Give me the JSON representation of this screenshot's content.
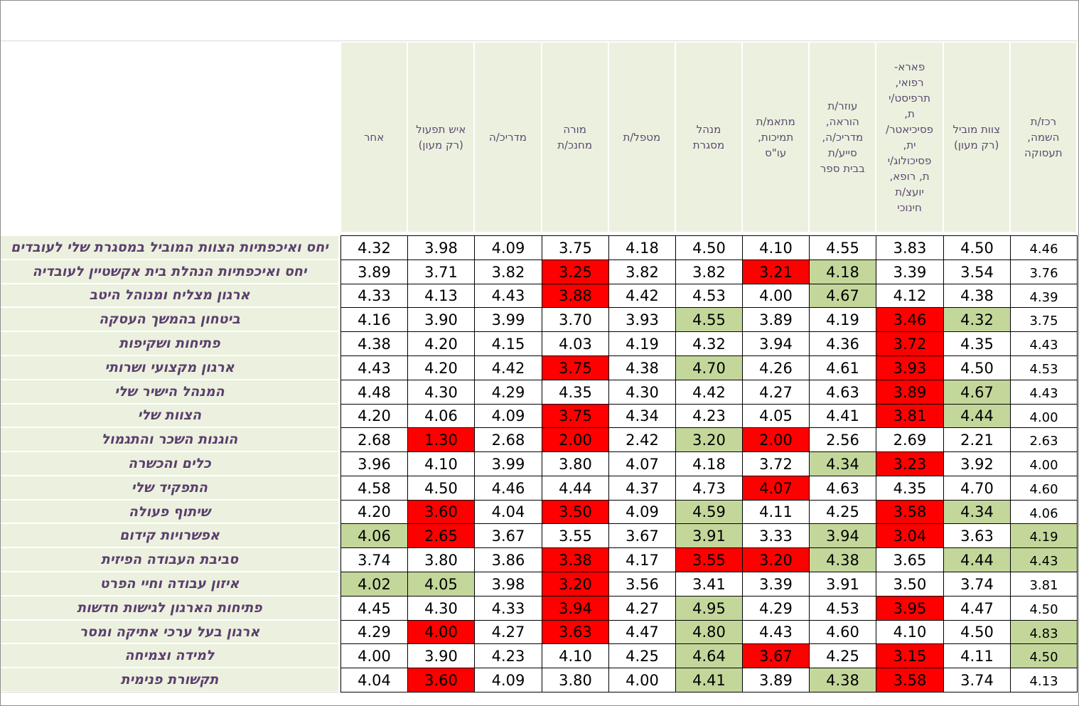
{
  "colors": {
    "red": "#ff0000",
    "green": "#c4d79b",
    "header_bg": "#ebf1de",
    "label_text": "#5b3f6e"
  },
  "chart_data": {
    "type": "table",
    "columns": [
      "רכז/ת\nהשמה,\nתעסוקה",
      "צוות מוביל\n(רק מעון)",
      "פארא-\nרפואי,\nתרפיסט/י\nת,\nפסיכיאטר/\nית,\nפסיכולוג/י\nת, רופא,\nיועצ/ת\nחינוכי",
      "עוזר/ת\nהוראה,\nמדריכ/ה,\nסייע/ת\nבבית ספר",
      "מתאמ/ת\nתמיכות,\nעו\"ס",
      "מנהל\nמסגרת",
      "מטפל/ת",
      "מורה\nמחנכ/ת",
      "מדריכ/ה",
      "איש תפעול\n(רק מעון)",
      "אחר"
    ],
    "rows": [
      {
        "label": "יחס ואיכפתיות הצוות המוביל במסגרת שלי לעובדים",
        "values": [
          "4.46",
          "4.50",
          "3.83",
          "4.55",
          "4.10",
          "4.50",
          "4.18",
          "3.75",
          "4.09",
          "3.98",
          "4.32"
        ],
        "status": [
          "",
          "",
          "",
          "",
          "",
          "",
          "",
          "",
          "",
          "",
          ""
        ]
      },
      {
        "label": "יחס ואיכפתיות הנהלת בית אקשטיין לעובדיה",
        "values": [
          "3.76",
          "3.54",
          "3.39",
          "4.18",
          "3.21",
          "3.82",
          "3.82",
          "3.25",
          "3.82",
          "3.71",
          "3.89"
        ],
        "status": [
          "",
          "",
          "",
          "green",
          "red",
          "",
          "",
          "red",
          "",
          "",
          ""
        ]
      },
      {
        "label": "ארגון מצליח ומנוהל היטב",
        "values": [
          "4.39",
          "4.38",
          "4.12",
          "4.67",
          "4.00",
          "4.53",
          "4.42",
          "3.88",
          "4.43",
          "4.13",
          "4.33"
        ],
        "status": [
          "",
          "",
          "",
          "green",
          "",
          "",
          "",
          "red",
          "",
          "",
          ""
        ]
      },
      {
        "label": "ביטחון בהמשך העסקה",
        "values": [
          "3.75",
          "4.32",
          "3.46",
          "4.19",
          "3.89",
          "4.55",
          "3.93",
          "3.70",
          "3.99",
          "3.90",
          "4.16"
        ],
        "status": [
          "",
          "green",
          "red",
          "",
          "",
          "green",
          "",
          "",
          "",
          "",
          ""
        ]
      },
      {
        "label": "פתיחות ושקיפות",
        "values": [
          "4.43",
          "4.35",
          "3.72",
          "4.36",
          "3.94",
          "4.32",
          "4.19",
          "4.03",
          "4.15",
          "4.20",
          "4.38"
        ],
        "status": [
          "",
          "",
          "red",
          "",
          "",
          "",
          "",
          "",
          "",
          "",
          ""
        ]
      },
      {
        "label": "ארגון מקצועי ושרותי",
        "values": [
          "4.53",
          "4.50",
          "3.93",
          "4.61",
          "4.26",
          "4.70",
          "4.38",
          "3.75",
          "4.42",
          "4.20",
          "4.43"
        ],
        "status": [
          "",
          "",
          "red",
          "",
          "",
          "green",
          "",
          "red",
          "",
          "",
          ""
        ]
      },
      {
        "label": "המנהל הישיר שלי",
        "values": [
          "4.43",
          "4.67",
          "3.89",
          "4.63",
          "4.27",
          "4.42",
          "4.30",
          "4.35",
          "4.29",
          "4.30",
          "4.48"
        ],
        "status": [
          "",
          "green",
          "red",
          "",
          "",
          "",
          "",
          "",
          "",
          "",
          ""
        ]
      },
      {
        "label": "הצוות שלי",
        "values": [
          "4.00",
          "4.44",
          "3.81",
          "4.41",
          "4.05",
          "4.23",
          "4.34",
          "3.75",
          "4.09",
          "4.06",
          "4.20"
        ],
        "status": [
          "",
          "green",
          "red",
          "",
          "",
          "",
          "",
          "red",
          "",
          "",
          ""
        ]
      },
      {
        "label": "הוגנות השכר והתגמול",
        "values": [
          "2.63",
          "2.21",
          "2.69",
          "2.56",
          "2.00",
          "3.20",
          "2.42",
          "2.00",
          "2.68",
          "1.30",
          "2.68"
        ],
        "status": [
          "",
          "",
          "",
          "",
          "red",
          "green",
          "",
          "red",
          "",
          "red",
          ""
        ]
      },
      {
        "label": "כלים והכשרה",
        "values": [
          "4.00",
          "3.92",
          "3.23",
          "4.34",
          "3.72",
          "4.18",
          "4.07",
          "3.80",
          "3.99",
          "4.10",
          "3.96"
        ],
        "status": [
          "",
          "",
          "red",
          "green",
          "",
          "",
          "",
          "",
          "",
          "",
          ""
        ]
      },
      {
        "label": "התפקיד שלי",
        "values": [
          "4.60",
          "4.70",
          "4.35",
          "4.63",
          "4.07",
          "4.73",
          "4.37",
          "4.44",
          "4.46",
          "4.50",
          "4.58"
        ],
        "status": [
          "",
          "",
          "",
          "",
          "red",
          "",
          "",
          "",
          "",
          "",
          ""
        ]
      },
      {
        "label": "שיתוף פעולה",
        "values": [
          "4.06",
          "4.34",
          "3.58",
          "4.25",
          "4.11",
          "4.59",
          "4.09",
          "3.50",
          "4.04",
          "3.60",
          "4.20"
        ],
        "status": [
          "",
          "green",
          "red",
          "",
          "",
          "green",
          "",
          "red",
          "",
          "red",
          ""
        ]
      },
      {
        "label": "אפשרויות קידום",
        "values": [
          "4.19",
          "3.63",
          "3.04",
          "3.94",
          "3.33",
          "3.91",
          "3.67",
          "3.55",
          "3.67",
          "2.65",
          "4.06"
        ],
        "status": [
          "green",
          "",
          "red",
          "green",
          "",
          "green",
          "",
          "",
          "",
          "red",
          "green"
        ]
      },
      {
        "label": "סביבת העבודה הפיזית",
        "values": [
          "4.43",
          "4.44",
          "3.65",
          "4.38",
          "3.20",
          "3.55",
          "4.17",
          "3.38",
          "3.86",
          "3.80",
          "3.74"
        ],
        "status": [
          "green",
          "green",
          "",
          "green",
          "red",
          "red",
          "",
          "red",
          "",
          "",
          ""
        ]
      },
      {
        "label": "איזון עבודה וחיי הפרט",
        "values": [
          "3.81",
          "3.74",
          "3.50",
          "3.91",
          "3.39",
          "3.41",
          "3.56",
          "3.20",
          "3.98",
          "4.05",
          "4.02"
        ],
        "status": [
          "",
          "",
          "",
          "",
          "",
          "",
          "",
          "red",
          "",
          "green",
          "green"
        ]
      },
      {
        "label": "פתיחות הארגון לגישות חדשות",
        "values": [
          "4.50",
          "4.47",
          "3.95",
          "4.53",
          "4.29",
          "4.95",
          "4.27",
          "3.94",
          "4.33",
          "4.30",
          "4.45"
        ],
        "status": [
          "",
          "",
          "red",
          "",
          "",
          "green",
          "",
          "red",
          "",
          "",
          ""
        ]
      },
      {
        "label": "ארגון בעל ערכי אתיקה ומסר",
        "values": [
          "4.83",
          "4.50",
          "4.10",
          "4.60",
          "4.43",
          "4.80",
          "4.47",
          "3.63",
          "4.27",
          "4.00",
          "4.29"
        ],
        "status": [
          "green",
          "",
          "",
          "",
          "",
          "green",
          "",
          "red",
          "",
          "red",
          ""
        ]
      },
      {
        "label": "למידה וצמיחה",
        "values": [
          "4.50",
          "4.11",
          "3.15",
          "4.25",
          "3.67",
          "4.64",
          "4.25",
          "4.10",
          "4.23",
          "3.90",
          "4.00"
        ],
        "status": [
          "green",
          "",
          "red",
          "",
          "red",
          "green",
          "",
          "",
          "",
          "",
          ""
        ]
      },
      {
        "label": "תקשורת פנימית",
        "values": [
          "4.13",
          "3.74",
          "3.58",
          "4.38",
          "3.89",
          "4.41",
          "4.00",
          "3.80",
          "4.09",
          "3.60",
          "4.04"
        ],
        "status": [
          "",
          "",
          "red",
          "green",
          "",
          "green",
          "",
          "",
          "",
          "red",
          ""
        ]
      }
    ]
  }
}
